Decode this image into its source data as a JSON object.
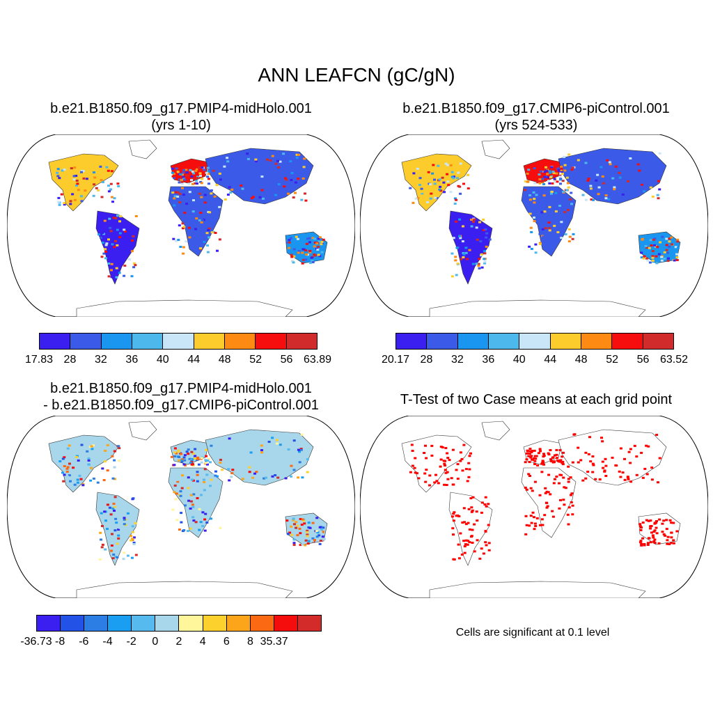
{
  "title": "ANN LEAFCN (gC/gN)",
  "panels": [
    {
      "title_line1": "b.e21.B1850.f09_g17.PMIP4-midHolo.001",
      "title_line2": "(yrs 1-10)",
      "colorbar": {
        "colors": [
          "#3a1ff0",
          "#3b5ae8",
          "#1a96f0",
          "#4cb8ec",
          "#c8e6f7",
          "#fccc2c",
          "#fd8a12",
          "#f60e0e",
          "#d12b2b"
        ],
        "tick_labels": [
          "17.83",
          "28",
          "32",
          "36",
          "40",
          "44",
          "48",
          "52",
          "56",
          "63.89"
        ]
      }
    },
    {
      "title_line1": "b.e21.B1850.f09_g17.CMIP6-piControl.001",
      "title_line2": "(yrs 524-533)",
      "colorbar": {
        "colors": [
          "#3a1ff0",
          "#3b5ae8",
          "#1a96f0",
          "#4cb8ec",
          "#c8e6f7",
          "#fccc2c",
          "#fd8a12",
          "#f60e0e",
          "#d12b2b"
        ],
        "tick_labels": [
          "20.17",
          "28",
          "32",
          "36",
          "40",
          "44",
          "48",
          "52",
          "56",
          "63.52"
        ]
      }
    },
    {
      "title_line1": "b.e21.B1850.f09_g17.PMIP4-midHolo.001",
      "title_line2": "- b.e21.B1850.f09_g17.CMIP6-piControl.001",
      "colorbar": {
        "colors": [
          "#3a1ff0",
          "#2252e6",
          "#2d7ee4",
          "#1a9ef2",
          "#56baee",
          "#a8d6ea",
          "#fff59a",
          "#fcd12e",
          "#fca41a",
          "#fb6a12",
          "#f50c0c",
          "#d32a2a"
        ],
        "tick_labels": [
          "-36.73",
          "-8",
          "-6",
          "-4",
          "-2",
          "0",
          "2",
          "4",
          "6",
          "8",
          "35.37"
        ]
      }
    },
    {
      "title_line1": "T-Test of two Case means at each grid point",
      "note": "Cells are significant at 0.1 level",
      "colors": [
        "#ff0000"
      ]
    }
  ]
}
